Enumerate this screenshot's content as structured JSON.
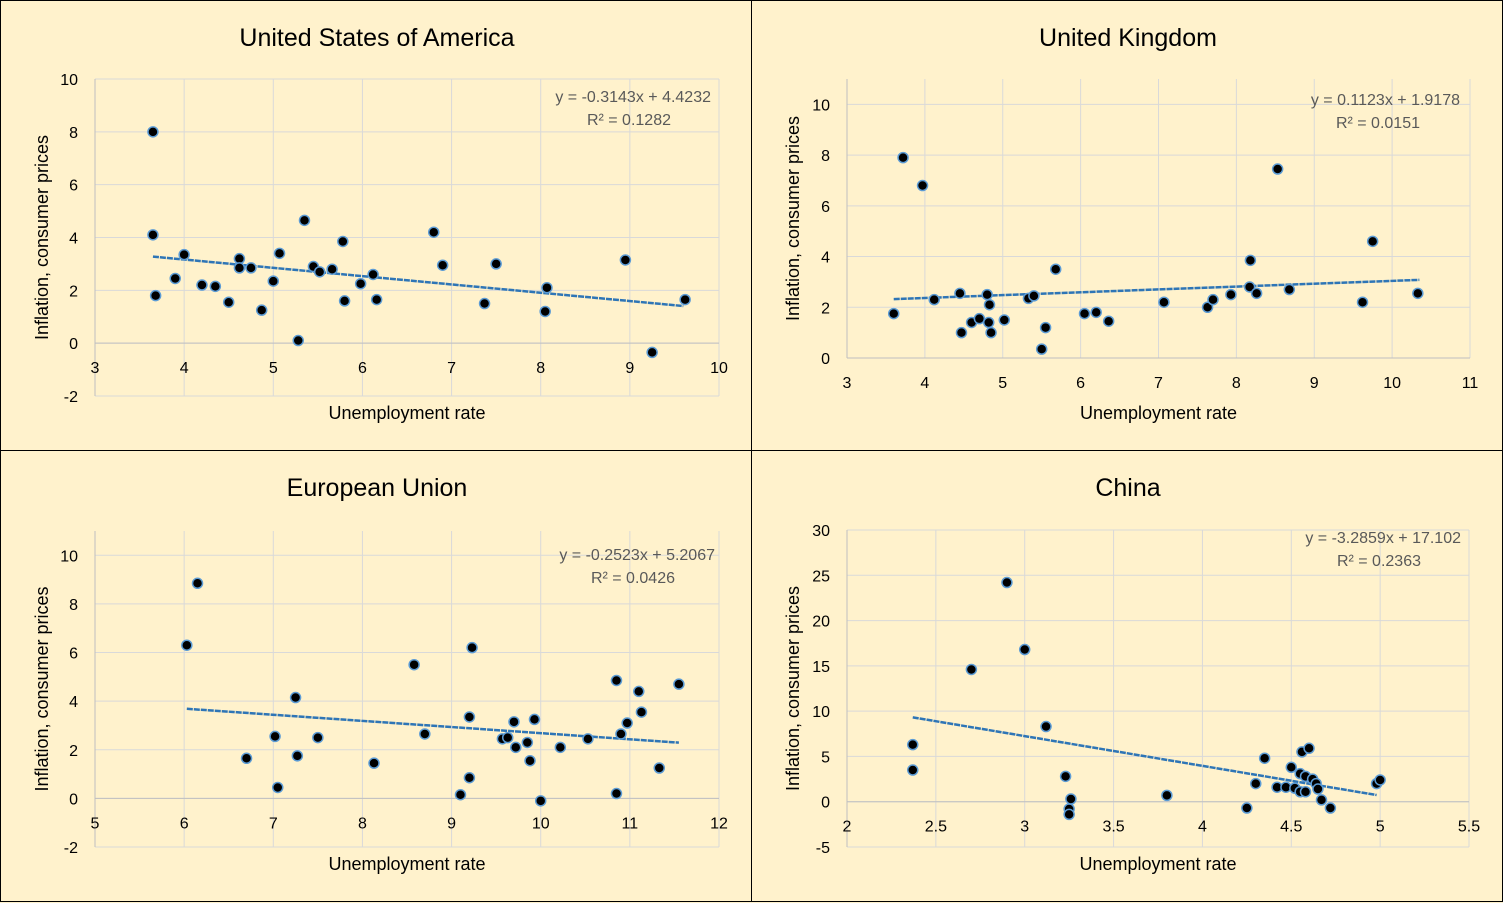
{
  "chart_data": [
    {
      "type": "scatter",
      "title": "United States of America",
      "xlabel": "Unemployment rate",
      "ylabel": "Inflation, consumer prices",
      "xlim": [
        3,
        10
      ],
      "ylim": [
        -2,
        10
      ],
      "xticks": [
        3,
        4,
        5,
        6,
        7,
        8,
        9,
        10
      ],
      "yticks": [
        -2,
        0,
        2,
        4,
        6,
        8,
        10
      ],
      "equation": "y = -0.3143x + 4.4232",
      "r2": "R² = 0.1282",
      "trend": {
        "slope": -0.3143,
        "intercept": 4.4232,
        "x_range": [
          3.65,
          9.6
        ]
      },
      "points": [
        [
          3.65,
          8.0
        ],
        [
          3.65,
          4.1
        ],
        [
          3.68,
          1.8
        ],
        [
          3.9,
          2.45
        ],
        [
          4.0,
          3.35
        ],
        [
          4.2,
          2.2
        ],
        [
          4.35,
          2.15
        ],
        [
          4.5,
          1.55
        ],
        [
          4.62,
          3.2
        ],
        [
          4.62,
          2.85
        ],
        [
          4.75,
          2.85
        ],
        [
          4.87,
          1.25
        ],
        [
          5.0,
          2.35
        ],
        [
          5.07,
          3.4
        ],
        [
          5.28,
          0.1
        ],
        [
          5.35,
          4.65
        ],
        [
          5.45,
          2.9
        ],
        [
          5.52,
          2.7
        ],
        [
          5.66,
          2.8
        ],
        [
          5.78,
          3.85
        ],
        [
          5.8,
          1.6
        ],
        [
          5.98,
          2.25
        ],
        [
          6.12,
          2.6
        ],
        [
          6.16,
          1.65
        ],
        [
          6.8,
          4.2
        ],
        [
          6.9,
          2.95
        ],
        [
          7.37,
          1.5
        ],
        [
          7.5,
          3.0
        ],
        [
          8.05,
          1.2
        ],
        [
          8.07,
          2.1
        ],
        [
          8.95,
          3.15
        ],
        [
          9.25,
          -0.35
        ],
        [
          9.62,
          1.65
        ]
      ]
    },
    {
      "type": "scatter",
      "title": "United Kingdom",
      "xlabel": "Unemployment rate",
      "ylabel": "Inflation, consumer prices",
      "xlim": [
        3,
        11
      ],
      "ylim": [
        0,
        11
      ],
      "xticks": [
        3,
        4,
        5,
        6,
        7,
        8,
        9,
        10,
        11
      ],
      "yticks": [
        0,
        2,
        4,
        6,
        8,
        10
      ],
      "equation": "y = 0.1123x + 1.9178",
      "r2": "R² = 0.0151",
      "trend": {
        "slope": 0.1123,
        "intercept": 1.9178,
        "x_range": [
          3.6,
          10.35
        ]
      },
      "points": [
        [
          3.6,
          1.75
        ],
        [
          3.72,
          7.9
        ],
        [
          3.97,
          6.8
        ],
        [
          4.12,
          2.3
        ],
        [
          4.45,
          2.55
        ],
        [
          4.47,
          1.0
        ],
        [
          4.6,
          1.4
        ],
        [
          4.7,
          1.55
        ],
        [
          4.8,
          2.5
        ],
        [
          4.82,
          1.4
        ],
        [
          4.83,
          2.1
        ],
        [
          4.85,
          1.0
        ],
        [
          5.02,
          1.5
        ],
        [
          5.33,
          2.35
        ],
        [
          5.4,
          2.45
        ],
        [
          5.5,
          0.35
        ],
        [
          5.55,
          1.2
        ],
        [
          5.68,
          3.5
        ],
        [
          6.05,
          1.75
        ],
        [
          6.2,
          1.8
        ],
        [
          6.36,
          1.45
        ],
        [
          7.07,
          2.2
        ],
        [
          7.63,
          2.0
        ],
        [
          7.7,
          2.3
        ],
        [
          7.93,
          2.5
        ],
        [
          8.17,
          2.8
        ],
        [
          8.18,
          3.85
        ],
        [
          8.26,
          2.55
        ],
        [
          8.53,
          7.45
        ],
        [
          8.68,
          2.7
        ],
        [
          9.62,
          2.2
        ],
        [
          9.75,
          4.6
        ],
        [
          10.33,
          2.55
        ]
      ]
    },
    {
      "type": "scatter",
      "title": "European Union",
      "xlabel": "Unemployment rate",
      "ylabel": "Inflation, consumer prices",
      "xlim": [
        5,
        12
      ],
      "ylim": [
        -2,
        11
      ],
      "xticks": [
        5,
        6,
        7,
        8,
        9,
        10,
        11,
        12
      ],
      "yticks": [
        -2,
        0,
        2,
        4,
        6,
        8,
        10
      ],
      "equation": "y = -0.2523x + 5.2067",
      "r2": "R² = 0.0426",
      "trend": {
        "slope": -0.2523,
        "intercept": 5.2067,
        "x_range": [
          6.03,
          11.55
        ]
      },
      "points": [
        [
          6.03,
          6.3
        ],
        [
          6.15,
          8.85
        ],
        [
          6.7,
          1.65
        ],
        [
          7.02,
          2.55
        ],
        [
          7.05,
          0.45
        ],
        [
          7.25,
          4.15
        ],
        [
          7.27,
          1.75
        ],
        [
          7.5,
          2.5
        ],
        [
          8.13,
          1.45
        ],
        [
          8.58,
          5.5
        ],
        [
          8.7,
          2.65
        ],
        [
          9.1,
          0.15
        ],
        [
          9.2,
          3.35
        ],
        [
          9.2,
          0.85
        ],
        [
          9.23,
          6.2
        ],
        [
          9.57,
          2.45
        ],
        [
          9.63,
          2.5
        ],
        [
          9.7,
          3.15
        ],
        [
          9.72,
          2.1
        ],
        [
          9.85,
          2.3
        ],
        [
          9.88,
          1.55
        ],
        [
          9.93,
          3.25
        ],
        [
          10.0,
          -0.1
        ],
        [
          10.22,
          2.1
        ],
        [
          10.53,
          2.45
        ],
        [
          10.85,
          4.85
        ],
        [
          10.85,
          0.2
        ],
        [
          10.9,
          2.65
        ],
        [
          10.97,
          3.1
        ],
        [
          11.1,
          4.4
        ],
        [
          11.13,
          3.55
        ],
        [
          11.33,
          1.25
        ],
        [
          11.55,
          4.7
        ]
      ]
    },
    {
      "type": "scatter",
      "title": "China",
      "xlabel": "Unemployment rate",
      "ylabel": "Inflation, consumer prices",
      "xlim": [
        2,
        5.5
      ],
      "ylim": [
        -5,
        30
      ],
      "xticks": [
        "2",
        "2.5",
        "3",
        "3.5",
        "4",
        "4.5",
        "5",
        "5.5"
      ],
      "yticks": [
        -5,
        0,
        5,
        10,
        15,
        20,
        25,
        30
      ],
      "equation": "y = -3.2859x + 17.102",
      "r2": "R² = 0.2363",
      "trend": {
        "slope": -3.2859,
        "intercept": 17.102,
        "x_range": [
          2.37,
          4.98
        ]
      },
      "points": [
        [
          2.37,
          6.3
        ],
        [
          2.37,
          3.5
        ],
        [
          2.7,
          14.6
        ],
        [
          2.9,
          24.2
        ],
        [
          3.0,
          16.8
        ],
        [
          3.12,
          8.3
        ],
        [
          3.23,
          2.8
        ],
        [
          3.25,
          -0.8
        ],
        [
          3.25,
          -1.4
        ],
        [
          3.26,
          0.3
        ],
        [
          3.8,
          0.7
        ],
        [
          4.25,
          -0.7
        ],
        [
          4.3,
          2.0
        ],
        [
          4.35,
          4.8
        ],
        [
          4.42,
          1.6
        ],
        [
          4.47,
          1.6
        ],
        [
          4.5,
          3.8
        ],
        [
          4.52,
          1.5
        ],
        [
          4.55,
          3.1
        ],
        [
          4.55,
          1.1
        ],
        [
          4.56,
          5.5
        ],
        [
          4.58,
          2.8
        ],
        [
          4.58,
          1.1
        ],
        [
          4.6,
          5.9
        ],
        [
          4.62,
          2.5
        ],
        [
          4.64,
          2.0
        ],
        [
          4.65,
          1.4
        ],
        [
          4.67,
          0.2
        ],
        [
          4.72,
          -0.7
        ],
        [
          4.98,
          2.0
        ],
        [
          5.0,
          2.4
        ]
      ]
    }
  ]
}
